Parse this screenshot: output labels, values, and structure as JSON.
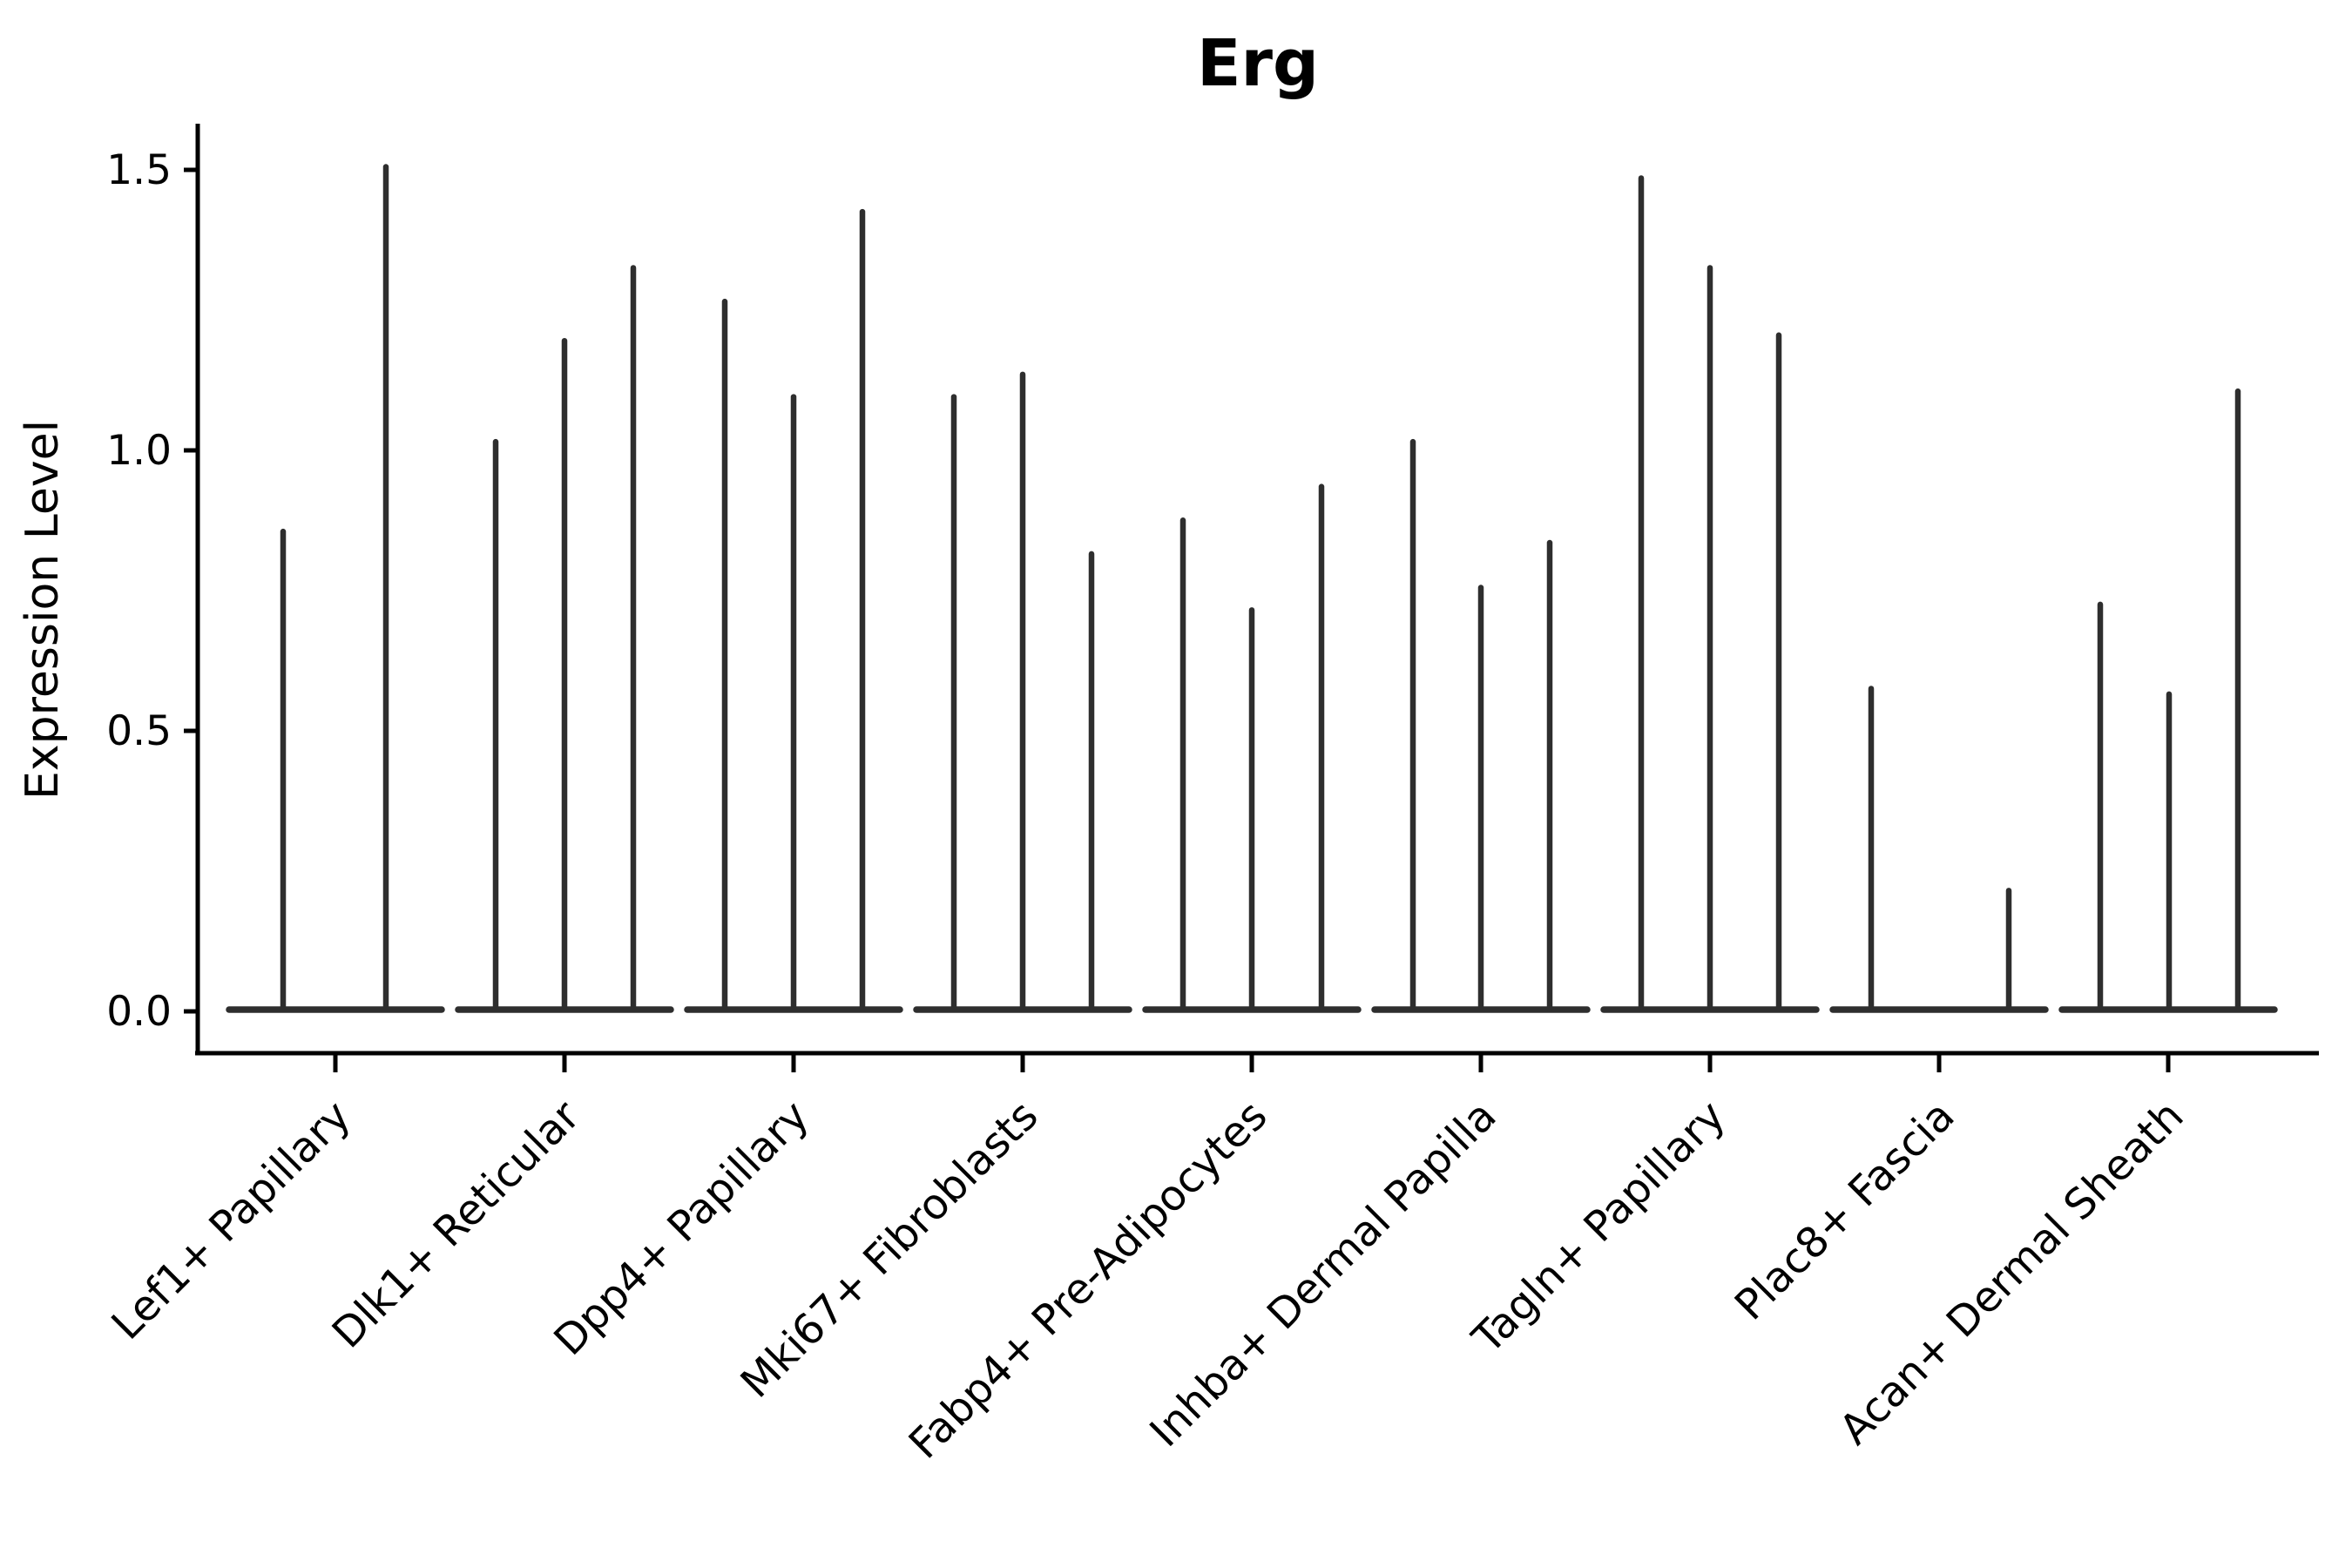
{
  "title": "Erg",
  "axes": {
    "y_label": "Expression Level",
    "y_tick_labels": [
      "0.0",
      "0.5",
      "1.0",
      "1.5"
    ]
  },
  "colors": {
    "violin": "#2e2e2e",
    "axis": "#000000",
    "background": "#ffffff"
  },
  "chart_data": {
    "type": "violin",
    "title": "Erg",
    "xlabel": "",
    "ylabel": "Expression Level",
    "ylim": [
      -0.05,
      1.58
    ],
    "yticks": [
      0.0,
      0.5,
      1.0,
      1.5
    ],
    "grid": false,
    "legend": "none",
    "style_note": "ultra-thin spike violins with wide flat bases at y=0; up to 3 violins per category",
    "categories": [
      "Lef1+ Papillary",
      "Dlk1+ Reticular",
      "Dpp4+ Papillary",
      "Mki67+ Fibroblasts",
      "Fabp4+ Pre-Adipocytes",
      "Inhba+ Dermal Papilla",
      "Tagln+ Papillary",
      "Plac8+ Fascia",
      "Acan+ Dermal Sheath"
    ],
    "violins": [
      {
        "category": "Lef1+ Papillary",
        "spike_values": [
          0.86,
          1.51
        ],
        "slot_offsets": [
          -60,
          58
        ]
      },
      {
        "category": "Dlk1+ Reticular",
        "spike_values": [
          1.02,
          1.2,
          1.33
        ],
        "slot_offsets": [
          -79,
          0,
          79
        ]
      },
      {
        "category": "Dpp4+ Papillary",
        "spike_values": [
          1.27,
          1.1,
          1.43
        ],
        "slot_offsets": [
          -79,
          0,
          79
        ]
      },
      {
        "category": "Mki67+ Fibroblasts",
        "spike_values": [
          1.1,
          1.14,
          0.82
        ],
        "slot_offsets": [
          -79,
          0,
          79
        ]
      },
      {
        "category": "Fabp4+ Pre-Adipocytes",
        "spike_values": [
          0.88,
          0.72,
          0.94
        ],
        "slot_offsets": [
          -79,
          0,
          80
        ]
      },
      {
        "category": "Inhba+ Dermal Papilla",
        "spike_values": [
          1.02,
          0.76,
          0.84
        ],
        "slot_offsets": [
          -78,
          0,
          79
        ]
      },
      {
        "category": "Tagln+ Papillary",
        "spike_values": [
          1.49,
          1.33,
          1.21
        ],
        "slot_offsets": [
          -79,
          0,
          79
        ]
      },
      {
        "category": "Plac8+ Fascia",
        "spike_values": [
          0.58,
          0.22
        ],
        "slot_offsets": [
          -78,
          80
        ]
      },
      {
        "category": "Acan+ Dermal Sheath",
        "spike_values": [
          0.73,
          0.57,
          1.11
        ],
        "slot_offsets": [
          -78,
          1,
          80
        ]
      }
    ]
  }
}
